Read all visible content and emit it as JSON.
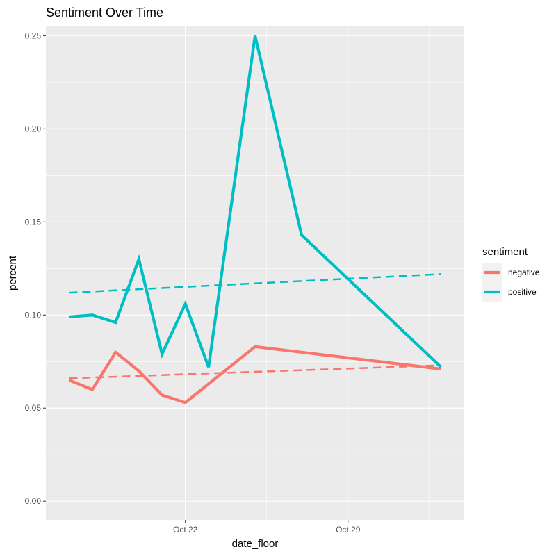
{
  "chart_data": {
    "type": "line",
    "title": "Sentiment Over Time",
    "xlabel": "date_floor",
    "ylabel": "percent",
    "xlim": [
      "2023-10-16",
      "2023-11-03"
    ],
    "ylim": [
      -0.01,
      0.255
    ],
    "x_ticks": [
      "2023-10-22",
      "2023-10-29"
    ],
    "x_tick_labels": [
      "Oct 22",
      "Oct 29"
    ],
    "y_ticks": [
      0.0,
      0.05,
      0.1,
      0.15,
      0.2,
      0.25
    ],
    "y_tick_labels": [
      "0.00",
      "0.05",
      "0.10",
      "0.15",
      "0.20",
      "0.25"
    ],
    "grid": true,
    "legend": {
      "title": "sentiment",
      "position": "right"
    },
    "series": [
      {
        "name": "negative",
        "color": "#F8766D",
        "x": [
          "2023-10-17",
          "2023-10-18",
          "2023-10-19",
          "2023-10-20",
          "2023-10-21",
          "2023-10-22",
          "2023-10-25",
          "2023-11-02"
        ],
        "values": [
          0.065,
          0.06,
          0.08,
          0.07,
          0.057,
          0.053,
          0.083,
          0.071
        ],
        "trend": {
          "x": [
            "2023-10-17",
            "2023-11-02"
          ],
          "values": [
            0.066,
            0.073
          ]
        }
      },
      {
        "name": "positive",
        "color": "#00BFC4",
        "x": [
          "2023-10-17",
          "2023-10-18",
          "2023-10-19",
          "2023-10-20",
          "2023-10-21",
          "2023-10-22",
          "2023-10-23",
          "2023-10-25",
          "2023-10-27",
          "2023-11-02"
        ],
        "values": [
          0.099,
          0.1,
          0.096,
          0.13,
          0.079,
          0.106,
          0.072,
          0.25,
          0.143,
          0.072
        ],
        "trend": {
          "x": [
            "2023-10-17",
            "2023-11-02"
          ],
          "values": [
            0.112,
            0.122
          ]
        }
      }
    ]
  }
}
